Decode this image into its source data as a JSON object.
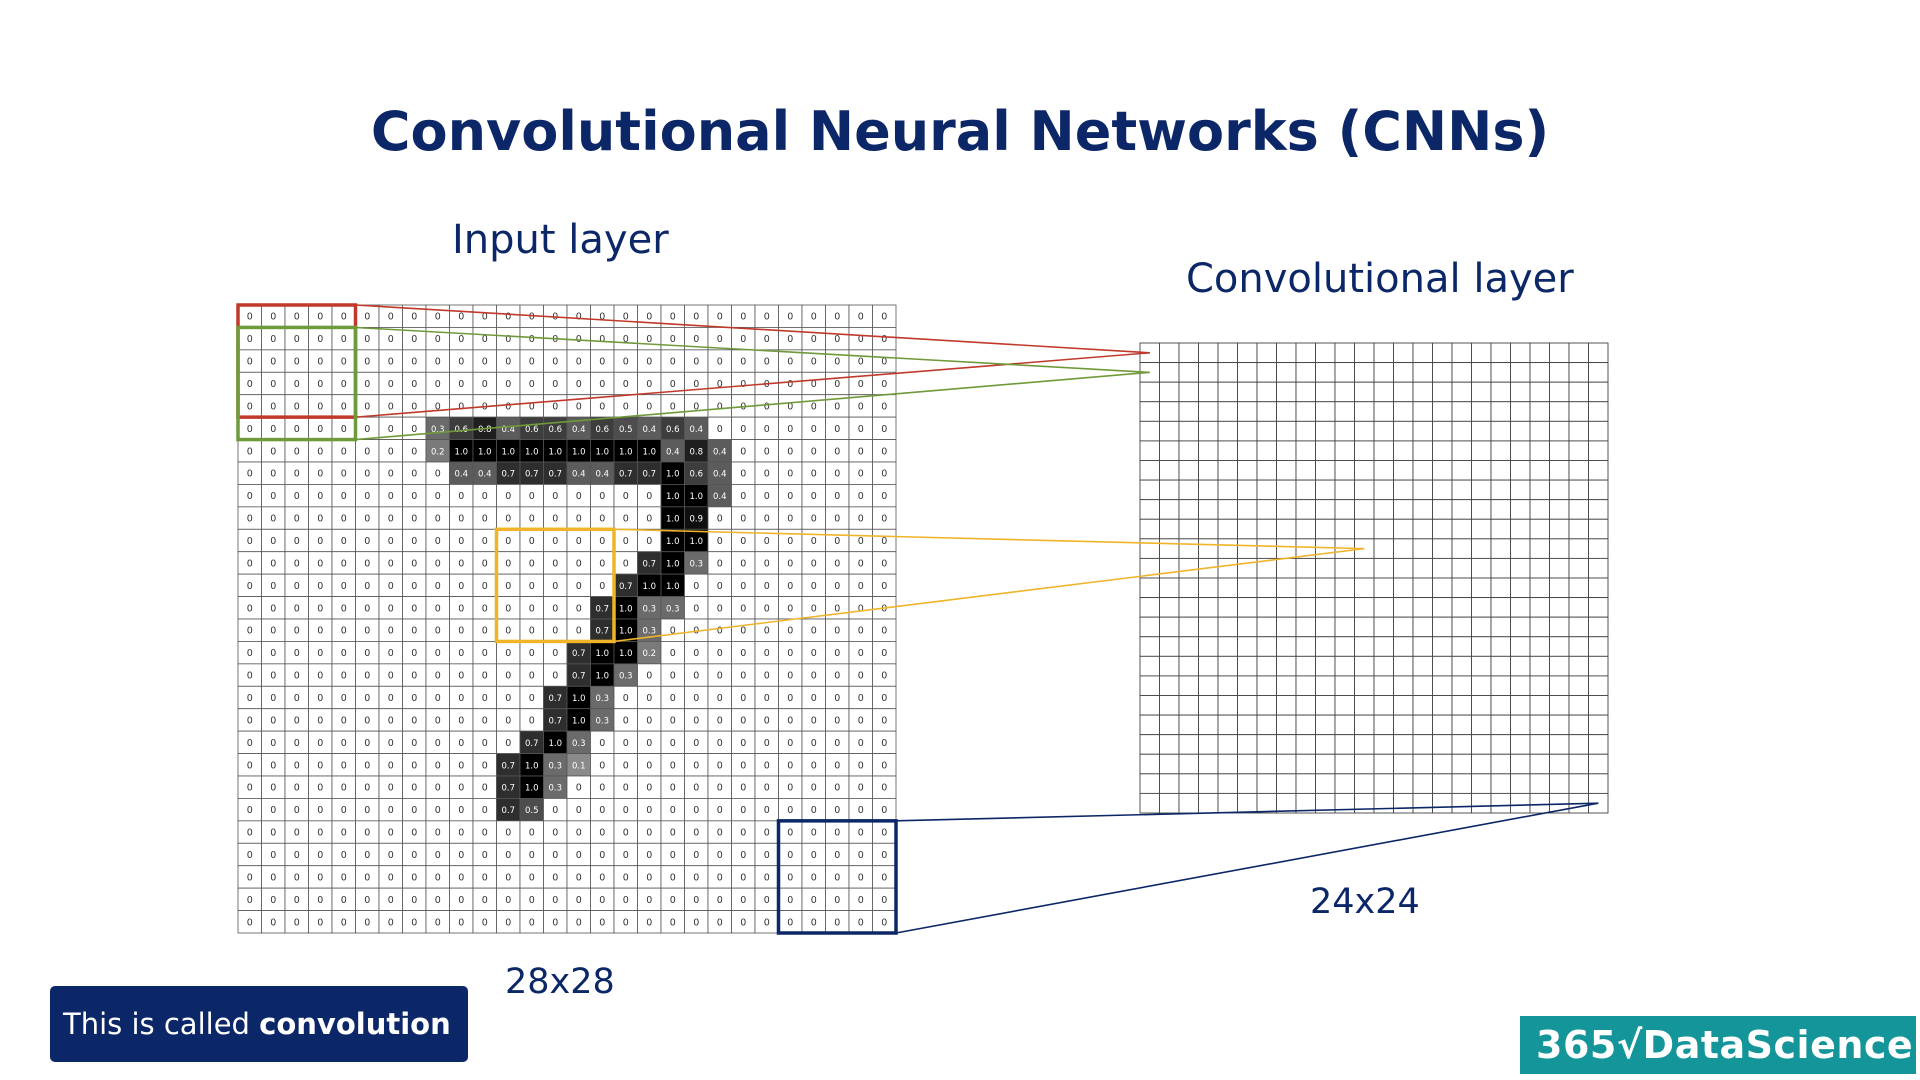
{
  "title": "Convolutional Neural Networks (CNNs)",
  "input_layer": {
    "label": "Input layer",
    "size_label": "28x28",
    "rows": 28,
    "cols": 28,
    "pixels": [
      {
        "r": 5,
        "c": 8,
        "v": "0.3"
      },
      {
        "r": 5,
        "c": 9,
        "v": "0.6"
      },
      {
        "r": 5,
        "c": 10,
        "v": "0.8"
      },
      {
        "r": 5,
        "c": 11,
        "v": "0.4"
      },
      {
        "r": 5,
        "c": 12,
        "v": "0.6"
      },
      {
        "r": 5,
        "c": 13,
        "v": "0.6"
      },
      {
        "r": 5,
        "c": 14,
        "v": "0.4"
      },
      {
        "r": 5,
        "c": 15,
        "v": "0.6"
      },
      {
        "r": 5,
        "c": 16,
        "v": "0.5"
      },
      {
        "r": 5,
        "c": 17,
        "v": "0.4"
      },
      {
        "r": 5,
        "c": 18,
        "v": "0.6"
      },
      {
        "r": 5,
        "c": 19,
        "v": "0.4"
      },
      {
        "r": 6,
        "c": 8,
        "v": "0.2"
      },
      {
        "r": 6,
        "c": 9,
        "v": "1.0"
      },
      {
        "r": 6,
        "c": 10,
        "v": "1.0"
      },
      {
        "r": 6,
        "c": 11,
        "v": "1.0"
      },
      {
        "r": 6,
        "c": 12,
        "v": "1.0"
      },
      {
        "r": 6,
        "c": 13,
        "v": "1.0"
      },
      {
        "r": 6,
        "c": 14,
        "v": "1.0"
      },
      {
        "r": 6,
        "c": 15,
        "v": "1.0"
      },
      {
        "r": 6,
        "c": 16,
        "v": "1.0"
      },
      {
        "r": 6,
        "c": 17,
        "v": "1.0"
      },
      {
        "r": 6,
        "c": 18,
        "v": "0.4"
      },
      {
        "r": 6,
        "c": 19,
        "v": "0.8"
      },
      {
        "r": 6,
        "c": 20,
        "v": "0.4"
      },
      {
        "r": 7,
        "c": 9,
        "v": "0.4"
      },
      {
        "r": 7,
        "c": 10,
        "v": "0.4"
      },
      {
        "r": 7,
        "c": 11,
        "v": "0.7"
      },
      {
        "r": 7,
        "c": 12,
        "v": "0.7"
      },
      {
        "r": 7,
        "c": 13,
        "v": "0.7"
      },
      {
        "r": 7,
        "c": 14,
        "v": "0.4"
      },
      {
        "r": 7,
        "c": 15,
        "v": "0.4"
      },
      {
        "r": 7,
        "c": 16,
        "v": "0.7"
      },
      {
        "r": 7,
        "c": 17,
        "v": "0.7"
      },
      {
        "r": 7,
        "c": 18,
        "v": "1.0"
      },
      {
        "r": 7,
        "c": 19,
        "v": "0.6"
      },
      {
        "r": 7,
        "c": 20,
        "v": "0.4"
      },
      {
        "r": 8,
        "c": 18,
        "v": "1.0"
      },
      {
        "r": 8,
        "c": 19,
        "v": "1.0"
      },
      {
        "r": 8,
        "c": 20,
        "v": "0.4"
      },
      {
        "r": 9,
        "c": 18,
        "v": "1.0"
      },
      {
        "r": 9,
        "c": 19,
        "v": "0.9"
      },
      {
        "r": 10,
        "c": 18,
        "v": "1.0"
      },
      {
        "r": 10,
        "c": 19,
        "v": "1.0"
      },
      {
        "r": 11,
        "c": 17,
        "v": "0.7"
      },
      {
        "r": 11,
        "c": 18,
        "v": "1.0"
      },
      {
        "r": 11,
        "c": 19,
        "v": "0.3"
      },
      {
        "r": 12,
        "c": 16,
        "v": "0.7"
      },
      {
        "r": 12,
        "c": 17,
        "v": "1.0"
      },
      {
        "r": 12,
        "c": 18,
        "v": "1.0"
      },
      {
        "r": 13,
        "c": 15,
        "v": "0.7"
      },
      {
        "r": 13,
        "c": 16,
        "v": "1.0"
      },
      {
        "r": 13,
        "c": 17,
        "v": "0.3"
      },
      {
        "r": 13,
        "c": 18,
        "v": "0.3"
      },
      {
        "r": 14,
        "c": 15,
        "v": "0.7"
      },
      {
        "r": 14,
        "c": 16,
        "v": "1.0"
      },
      {
        "r": 14,
        "c": 17,
        "v": "0.3"
      },
      {
        "r": 15,
        "c": 14,
        "v": "0.7"
      },
      {
        "r": 15,
        "c": 15,
        "v": "1.0"
      },
      {
        "r": 15,
        "c": 16,
        "v": "1.0"
      },
      {
        "r": 15,
        "c": 17,
        "v": "0.2"
      },
      {
        "r": 16,
        "c": 14,
        "v": "0.7"
      },
      {
        "r": 16,
        "c": 15,
        "v": "1.0"
      },
      {
        "r": 16,
        "c": 16,
        "v": "0.3"
      },
      {
        "r": 17,
        "c": 13,
        "v": "0.7"
      },
      {
        "r": 17,
        "c": 14,
        "v": "1.0"
      },
      {
        "r": 17,
        "c": 15,
        "v": "0.3"
      },
      {
        "r": 18,
        "c": 13,
        "v": "0.7"
      },
      {
        "r": 18,
        "c": 14,
        "v": "1.0"
      },
      {
        "r": 18,
        "c": 15,
        "v": "0.3"
      },
      {
        "r": 19,
        "c": 12,
        "v": "0.7"
      },
      {
        "r": 19,
        "c": 13,
        "v": "1.0"
      },
      {
        "r": 19,
        "c": 14,
        "v": "0.3"
      },
      {
        "r": 20,
        "c": 11,
        "v": "0.7"
      },
      {
        "r": 20,
        "c": 12,
        "v": "1.0"
      },
      {
        "r": 20,
        "c": 13,
        "v": "0.3"
      },
      {
        "r": 20,
        "c": 14,
        "v": "0.1"
      },
      {
        "r": 21,
        "c": 11,
        "v": "0.7"
      },
      {
        "r": 21,
        "c": 12,
        "v": "1.0"
      },
      {
        "r": 21,
        "c": 13,
        "v": "0.3"
      },
      {
        "r": 22,
        "c": 11,
        "v": "0.7"
      },
      {
        "r": 22,
        "c": 12,
        "v": "0.5"
      }
    ]
  },
  "conv_layer": {
    "label": "Convolutional layer",
    "size_label": "24x24",
    "rows": 24,
    "cols": 24
  },
  "kernels": [
    {
      "name": "red",
      "color": "#c0392b",
      "row": 0,
      "col": 0
    },
    {
      "name": "green",
      "color": "#6f9a3a",
      "row": 1,
      "col": 0
    },
    {
      "name": "yellow",
      "color": "#f0b429",
      "row": 10,
      "col": 11
    },
    {
      "name": "navy",
      "color": "#0c2768",
      "row": 23,
      "col": 23
    }
  ],
  "callout": {
    "prefix": "This is called ",
    "bold": "convolution"
  },
  "logo_text": "365√DataScience",
  "colors": {
    "title": "#0c2768",
    "grid": "#555555",
    "callout_bg": "#0c2768",
    "logo_bg": "#14959a"
  }
}
